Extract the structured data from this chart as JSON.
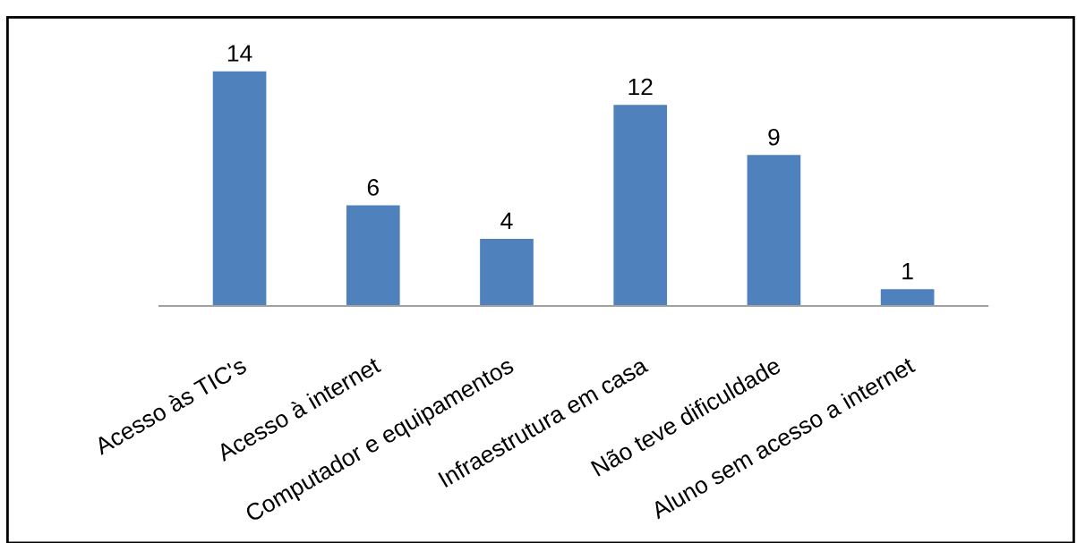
{
  "chart_data": {
    "type": "bar",
    "categories": [
      "Acesso às TIC's",
      "Acesso à internet",
      "Computador e equipamentos",
      "Infraestrutura em casa",
      "Não teve dificuldade",
      "Aluno sem acesso a internet"
    ],
    "values": [
      14,
      6,
      4,
      12,
      9,
      1
    ],
    "color": "#4f81bd",
    "data_labels": true,
    "tick_labels": "x",
    "grid": false
  }
}
